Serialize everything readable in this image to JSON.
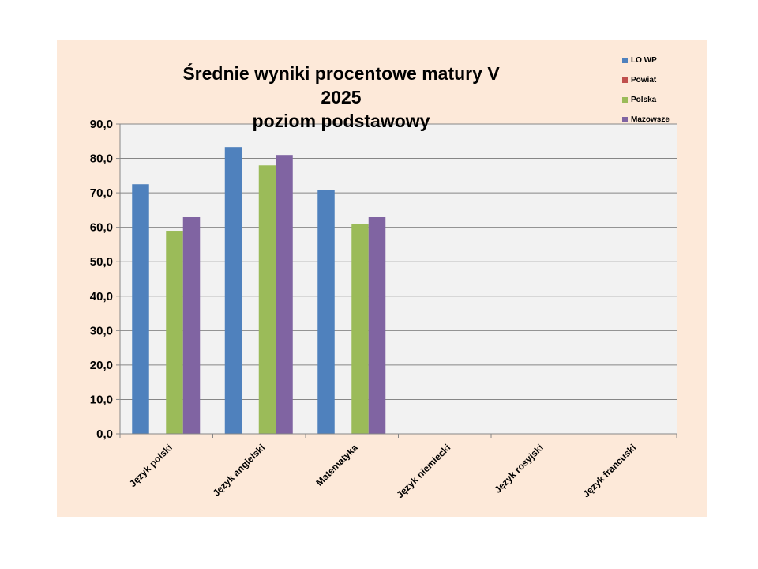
{
  "chart_data": {
    "type": "bar",
    "title": "Średnie wyniki procentowe matury V 2025",
    "subtitle": "poziom podstawowy",
    "categories": [
      "Język polski",
      "Język angielski",
      "Matematyka",
      "Język niemiecki",
      "Język rosyjski",
      "Język francuski"
    ],
    "series": [
      {
        "name": "LO WP",
        "color": "#4f81bd",
        "values": [
          72.5,
          83.3,
          70.8,
          null,
          null,
          null
        ]
      },
      {
        "name": "Powiat",
        "color": "#c0504d",
        "values": [
          null,
          null,
          null,
          null,
          null,
          null
        ]
      },
      {
        "name": "Polska",
        "color": "#9bbb59",
        "values": [
          59.0,
          78.0,
          61.0,
          null,
          null,
          null
        ]
      },
      {
        "name": "Mazowsze",
        "color": "#8064a2",
        "values": [
          63.0,
          81.0,
          63.0,
          null,
          null,
          null
        ]
      }
    ],
    "ylim": [
      0,
      90
    ],
    "ytick_step": 10,
    "ytick_labels": [
      "0,0",
      "10,0",
      "20,0",
      "30,0",
      "40,0",
      "50,0",
      "60,0",
      "70,0",
      "80,0",
      "90,0"
    ],
    "grid": true,
    "legend_position": "top-right",
    "colors": {
      "chart_background": "#fde9d9",
      "plot_background": "#f2f2f2",
      "gridline": "#868686"
    }
  }
}
